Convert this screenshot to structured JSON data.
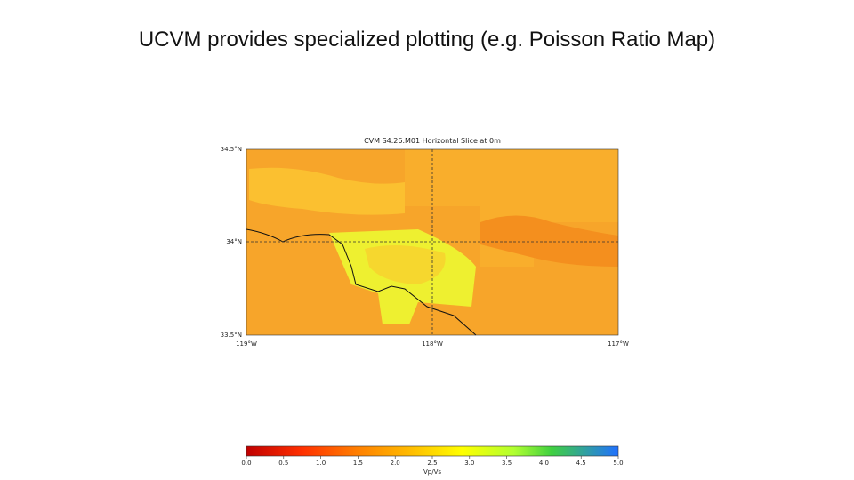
{
  "slide": {
    "title": "UCVM provides specialized plotting (e.g. Poisson Ratio Map)"
  },
  "map": {
    "title": "CVM S4.26.M01 Horizontal Slice at 0m",
    "lat_labels": [
      "34.5°N",
      "34°N",
      "33.5°N"
    ],
    "lon_labels": [
      "119°W",
      "118°W",
      "117°W"
    ]
  },
  "colorbar": {
    "label": "Vp/Vs",
    "lim": [
      0,
      5
    ],
    "ticks": [
      {
        "value": 0,
        "label": "0.0"
      },
      {
        "value": 0.5,
        "label": "0.5"
      },
      {
        "value": 1,
        "label": "1.0"
      },
      {
        "value": 1.5,
        "label": "1.5"
      },
      {
        "value": 2,
        "label": "2.0"
      },
      {
        "value": 2.5,
        "label": "2.5"
      },
      {
        "value": 3,
        "label": "3.0"
      },
      {
        "value": 3.5,
        "label": "3.5"
      },
      {
        "value": 4,
        "label": "4.0"
      },
      {
        "value": 4.5,
        "label": "4.5"
      },
      {
        "value": 5,
        "label": "5.0"
      }
    ]
  }
}
